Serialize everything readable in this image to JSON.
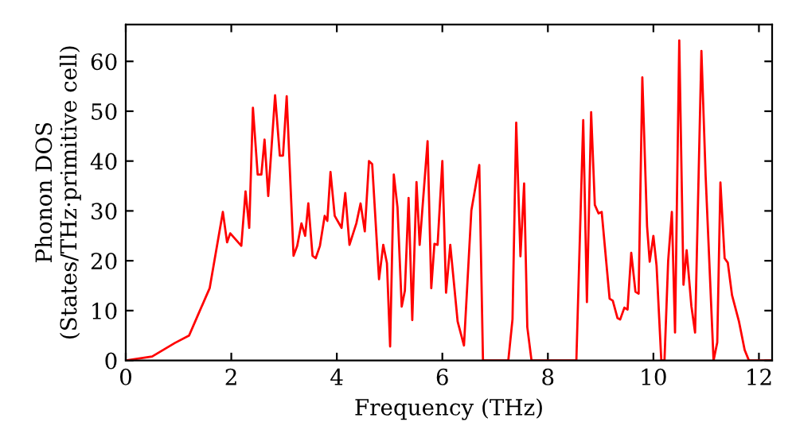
{
  "chart_data": {
    "type": "line",
    "xlabel": "Frequency (THz)",
    "ylabel": "Phonon DOS\n(States/THz·primitive cell)",
    "xlim": [
      0,
      12.25
    ],
    "ylim": [
      0,
      67.4
    ],
    "xticks": [
      0,
      2,
      4,
      6,
      8,
      10,
      12
    ],
    "yticks": [
      0,
      10,
      20,
      30,
      40,
      50,
      60
    ],
    "grid": false,
    "legend": false,
    "series": [
      {
        "color": "#ff0000",
        "x": [
          0,
          0.5,
          0.93,
          1.2,
          1.38,
          1.59,
          1.84,
          1.92,
          1.98,
          2.19,
          2.27,
          2.34,
          2.41,
          2.5,
          2.57,
          2.63,
          2.7,
          2.83,
          2.92,
          2.98,
          3.05,
          3.18,
          3.25,
          3.33,
          3.4,
          3.46,
          3.54,
          3.6,
          3.68,
          3.77,
          3.82,
          3.88,
          3.96,
          4.09,
          4.16,
          4.24,
          4.37,
          4.45,
          4.53,
          4.61,
          4.67,
          4.8,
          4.88,
          4.95,
          5.01,
          5.08,
          5.15,
          5.23,
          5.29,
          5.36,
          5.43,
          5.51,
          5.57,
          5.72,
          5.79,
          5.85,
          5.91,
          6.0,
          6.07,
          6.15,
          6.29,
          6.41,
          6.55,
          6.7,
          6.77,
          7.25,
          7.33,
          7.4,
          7.48,
          7.55,
          7.61,
          7.69,
          8.54,
          8.67,
          8.74,
          8.82,
          8.89,
          8.96,
          9.02,
          9.17,
          9.23,
          9.32,
          9.37,
          9.45,
          9.51,
          9.58,
          9.66,
          9.72,
          9.79,
          9.88,
          9.93,
          10.0,
          10.06,
          10.15,
          10.21,
          10.28,
          10.35,
          10.41,
          10.49,
          10.57,
          10.63,
          10.72,
          10.79,
          10.91,
          10.99,
          11.14,
          11.21,
          11.27,
          11.35,
          11.41,
          11.49,
          11.62,
          11.73,
          11.81,
          12.25
        ],
        "values": [
          0,
          0.8,
          3.5,
          5,
          9.4,
          14.5,
          29.8,
          23.7,
          25.5,
          23,
          33.9,
          26.6,
          50.7,
          37.3,
          37.3,
          44.3,
          33,
          53.2,
          41.1,
          41.1,
          53,
          21,
          23,
          27.5,
          25,
          31.5,
          21,
          20.5,
          23,
          29,
          28,
          37.8,
          29,
          26.6,
          33.6,
          23.2,
          27.5,
          31.5,
          25.9,
          40,
          39.4,
          16.3,
          23.2,
          19.5,
          2.8,
          37.3,
          30.7,
          10.8,
          14,
          32.6,
          8.1,
          35.8,
          23.2,
          44,
          14.5,
          23.4,
          23.2,
          40,
          13.6,
          23.2,
          7.8,
          3,
          30.1,
          39.2,
          0,
          0,
          8.3,
          47.7,
          20.9,
          35.5,
          6.7,
          0,
          0,
          48.2,
          11.7,
          49.8,
          31.2,
          29.5,
          29.8,
          12.4,
          12,
          8.5,
          8.2,
          10.6,
          10.2,
          21.6,
          13.8,
          13.4,
          56.8,
          26.9,
          19.8,
          25,
          19,
          0,
          0,
          20,
          29.8,
          5.6,
          64.2,
          15.2,
          22.1,
          10.9,
          5.6,
          62.1,
          37,
          0,
          3.6,
          35.7,
          20.5,
          19.6,
          13.1,
          7.9,
          2.1,
          0,
          0
        ]
      }
    ]
  }
}
